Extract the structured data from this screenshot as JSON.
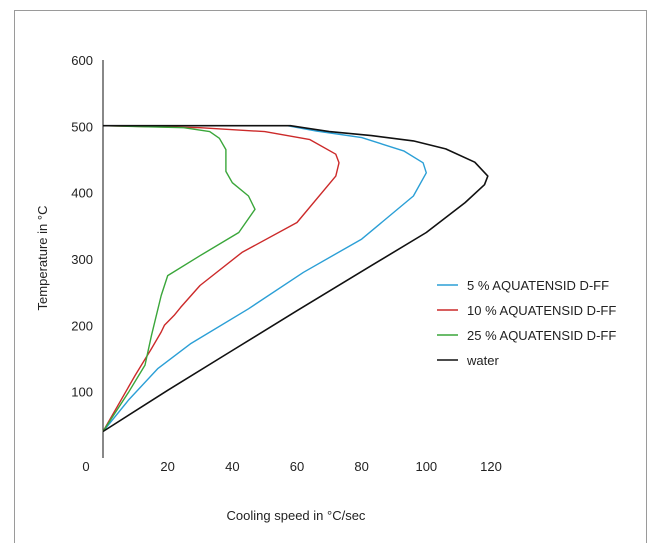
{
  "chart_data": {
    "type": "line",
    "title": "",
    "xlabel": "Cooling speed in °C/sec",
    "ylabel": "Temperature in °C",
    "xlim": [
      0,
      120
    ],
    "ylim": [
      0,
      600
    ],
    "xticks": [
      0,
      20,
      40,
      60,
      80,
      100,
      120
    ],
    "yticks": [
      100,
      200,
      300,
      400,
      500,
      600
    ],
    "grid": false,
    "legend_position": "right",
    "series": [
      {
        "name": "5 % AQUATENSID D-FF",
        "color": "#2b9fd6",
        "points": [
          [
            0,
            40
          ],
          [
            8,
            88
          ],
          [
            17,
            135
          ],
          [
            27,
            172
          ],
          [
            45,
            225
          ],
          [
            62,
            280
          ],
          [
            80,
            330
          ],
          [
            96,
            395
          ],
          [
            100,
            430
          ],
          [
            99,
            445
          ],
          [
            93,
            463
          ],
          [
            80,
            483
          ],
          [
            66,
            493
          ],
          [
            57,
            501
          ],
          [
            0,
            501
          ]
        ]
      },
      {
        "name": "10 % AQUATENSID D-FF",
        "color": "#cc2a2a",
        "points": [
          [
            0,
            40
          ],
          [
            10,
            125
          ],
          [
            15,
            165
          ],
          [
            18,
            190
          ],
          [
            19,
            200
          ],
          [
            22,
            215
          ],
          [
            24,
            227
          ],
          [
            30,
            260
          ],
          [
            43,
            310
          ],
          [
            60,
            355
          ],
          [
            72,
            425
          ],
          [
            73,
            445
          ],
          [
            72,
            458
          ],
          [
            64,
            480
          ],
          [
            50,
            492
          ],
          [
            30,
            498
          ],
          [
            0,
            501
          ]
        ]
      },
      {
        "name": "25 % AQUATENSID D-FF",
        "color": "#3aa63a",
        "points": [
          [
            0,
            40
          ],
          [
            8,
            100
          ],
          [
            13,
            140
          ],
          [
            15,
            185
          ],
          [
            18,
            245
          ],
          [
            20,
            275
          ],
          [
            30,
            305
          ],
          [
            42,
            340
          ],
          [
            47,
            375
          ],
          [
            45,
            395
          ],
          [
            40,
            415
          ],
          [
            38,
            432
          ],
          [
            38,
            465
          ],
          [
            36,
            482
          ],
          [
            33,
            492
          ],
          [
            25,
            498
          ],
          [
            0,
            501
          ]
        ]
      },
      {
        "name": "water",
        "color": "#111111",
        "points": [
          [
            0,
            40
          ],
          [
            20,
            102
          ],
          [
            40,
            162
          ],
          [
            60,
            222
          ],
          [
            83,
            290
          ],
          [
            100,
            340
          ],
          [
            112,
            385
          ],
          [
            118,
            412
          ],
          [
            119,
            425
          ],
          [
            115,
            446
          ],
          [
            106,
            466
          ],
          [
            96,
            478
          ],
          [
            83,
            486
          ],
          [
            70,
            492
          ],
          [
            58,
            501
          ],
          [
            0,
            501
          ]
        ]
      }
    ]
  }
}
